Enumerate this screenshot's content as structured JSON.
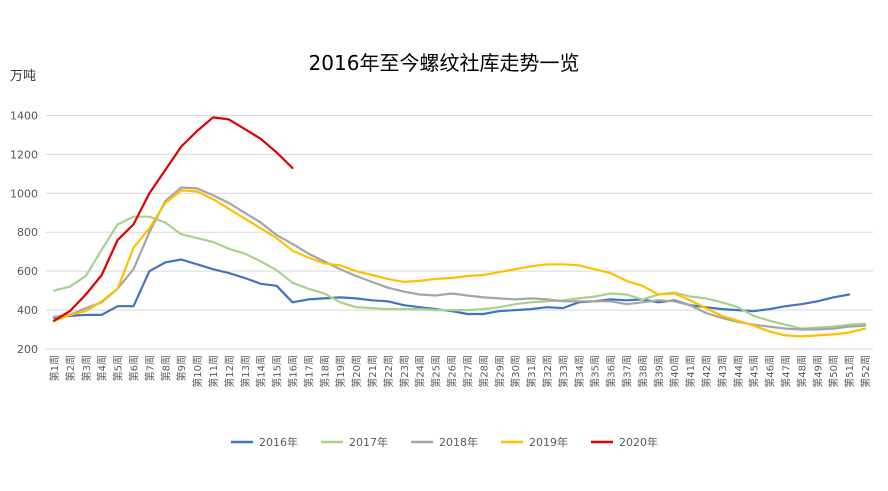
{
  "chart_data": {
    "type": "line",
    "title": "2016年至今螺纹社库走势一览",
    "ylabel": "万吨",
    "xlabel": "",
    "ylim": [
      200,
      1500
    ],
    "yticks": [
      200,
      400,
      600,
      800,
      1000,
      1200,
      1400
    ],
    "grid": "horizontal",
    "legend": "bottom",
    "categories": [
      "第1周",
      "第2周",
      "第3周",
      "第4周",
      "第5周",
      "第6周",
      "第7周",
      "第8周",
      "第9周",
      "第10周",
      "第11周",
      "第12周",
      "第13周",
      "第14周",
      "第15周",
      "第16周",
      "第17周",
      "第18周",
      "第19周",
      "第20周",
      "第21周",
      "第22周",
      "第23周",
      "第24周",
      "第25周",
      "第26周",
      "第27周",
      "第28周",
      "第29周",
      "第30周",
      "第31周",
      "第32周",
      "第33周",
      "第34周",
      "第35周",
      "第36周",
      "第37周",
      "第38周",
      "第39周",
      "第40周",
      "第41周",
      "第42周",
      "第43周",
      "第44周",
      "第45周",
      "第46周",
      "第47周",
      "第48周",
      "第49周",
      "第50周",
      "第51周",
      "第52周"
    ],
    "series": [
      {
        "name": "2016年",
        "color": "#4472C4",
        "values": [
          360,
          370,
          375,
          375,
          420,
          420,
          600,
          645,
          660,
          635,
          610,
          590,
          565,
          535,
          525,
          440,
          455,
          460,
          465,
          460,
          450,
          445,
          425,
          415,
          405,
          395,
          380,
          380,
          395,
          400,
          405,
          415,
          410,
          440,
          445,
          455,
          450,
          455,
          440,
          450,
          425,
          415,
          405,
          400,
          395,
          405,
          420,
          430,
          445,
          465,
          480,
          null
        ]
      },
      {
        "name": "2017年",
        "color": "#A9D18E",
        "values": [
          500,
          520,
          575,
          710,
          840,
          880,
          880,
          850,
          790,
          770,
          750,
          715,
          690,
          650,
          605,
          540,
          510,
          485,
          440,
          415,
          410,
          405,
          405,
          405,
          400,
          400,
          400,
          405,
          415,
          430,
          440,
          445,
          450,
          460,
          470,
          485,
          480,
          455,
          480,
          490,
          470,
          460,
          440,
          415,
          370,
          345,
          325,
          305,
          310,
          315,
          325,
          330
        ]
      },
      {
        "name": "2018年",
        "color": "#A5A5A5",
        "values": [
          365,
          375,
          410,
          440,
          510,
          610,
          800,
          960,
          1030,
          1025,
          990,
          950,
          900,
          850,
          785,
          740,
          690,
          650,
          610,
          575,
          545,
          515,
          495,
          480,
          475,
          485,
          475,
          465,
          460,
          455,
          460,
          455,
          445,
          445,
          445,
          445,
          430,
          440,
          450,
          445,
          425,
          385,
          360,
          340,
          325,
          315,
          305,
          300,
          300,
          305,
          315,
          320
        ]
      },
      {
        "name": "2019年",
        "color": "#FFC000",
        "values": [
          345,
          375,
          395,
          445,
          510,
          720,
          820,
          950,
          1015,
          1010,
          970,
          920,
          870,
          820,
          770,
          705,
          670,
          640,
          630,
          600,
          580,
          560,
          545,
          550,
          560,
          565,
          575,
          580,
          595,
          610,
          625,
          635,
          635,
          630,
          610,
          590,
          550,
          525,
          480,
          485,
          450,
          410,
          370,
          345,
          320,
          290,
          270,
          265,
          270,
          275,
          285,
          305
        ]
      },
      {
        "name": "2020年",
        "color": "#E00000",
        "values": [
          345,
          395,
          480,
          580,
          760,
          840,
          1000,
          1120,
          1240,
          1320,
          1390,
          1380,
          1330,
          1280,
          1210,
          1130,
          null,
          null,
          null,
          null,
          null,
          null,
          null,
          null,
          null,
          null,
          null,
          null,
          null,
          null,
          null,
          null,
          null,
          null,
          null,
          null,
          null,
          null,
          null,
          null,
          null,
          null,
          null,
          null,
          null,
          null,
          null,
          null,
          null,
          null,
          null,
          null
        ]
      }
    ]
  }
}
